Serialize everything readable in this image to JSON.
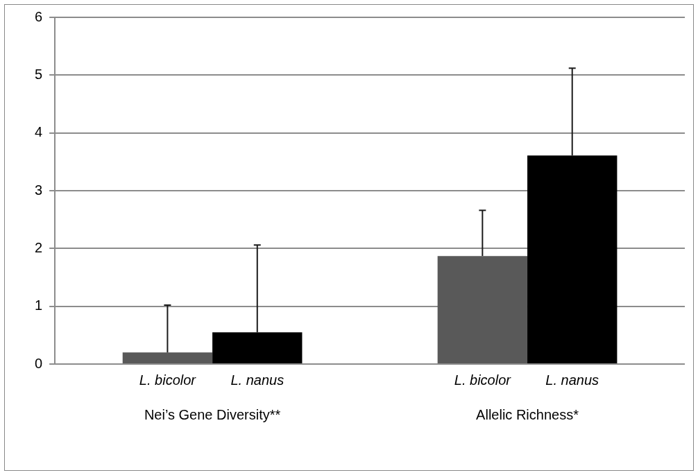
{
  "chart_data": {
    "type": "bar",
    "categories": [
      "Nei’s Gene Diversity**",
      "Allelic Richness*"
    ],
    "series": [
      {
        "name": "L. bicolor",
        "color": "#595959",
        "values": [
          0.2,
          1.87
        ],
        "errors": [
          [
            0.2,
            1.02
          ],
          [
            1.87,
            2.66
          ]
        ]
      },
      {
        "name": "L. nanus",
        "color": "#000000",
        "values": [
          0.55,
          3.61
        ],
        "errors": [
          [
            0.55,
            2.06
          ],
          [
            3.61,
            5.12
          ]
        ]
      }
    ],
    "ylim": [
      0,
      6
    ],
    "yticks": [
      0,
      1,
      2,
      3,
      4,
      5,
      6
    ],
    "grid": "y",
    "legend": false
  }
}
